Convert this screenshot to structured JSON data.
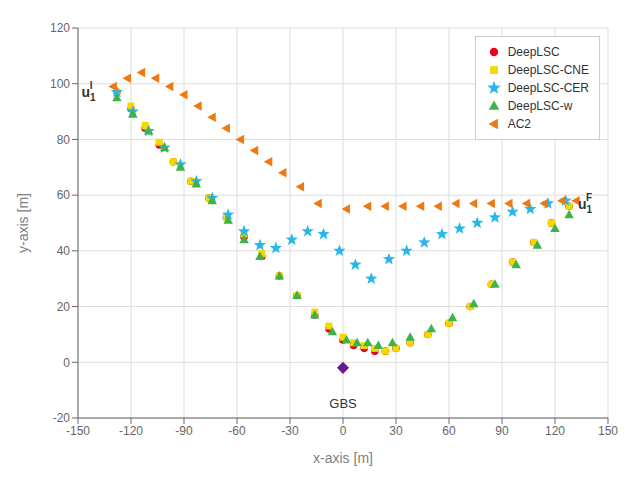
{
  "chart_data": {
    "type": "scatter",
    "x_label": "x-axis [m]",
    "y_label": "y-axis [m]",
    "xlim": [
      -150,
      150
    ],
    "ylim": [
      -20,
      120
    ],
    "xticks": [
      -150,
      -120,
      -90,
      -60,
      -30,
      0,
      30,
      60,
      90,
      120,
      150
    ],
    "yticks": [
      -20,
      0,
      20,
      40,
      60,
      80,
      100,
      120
    ],
    "grid": true,
    "legend": "upper right",
    "series": [
      {
        "name": "DeepLSC",
        "color": "#e8001c",
        "marker": "circle",
        "x": [
          -128,
          -120,
          -112,
          -104,
          -96,
          -86,
          -76,
          -66,
          -56,
          -46,
          -36,
          -26,
          -16,
          -8,
          0,
          6,
          12,
          18,
          24,
          30,
          38,
          48,
          60,
          72,
          84,
          96,
          108,
          118,
          128
        ],
        "values": [
          97,
          91,
          84,
          78,
          72,
          65,
          59,
          52,
          45,
          38,
          31,
          24,
          17,
          12,
          8,
          6,
          5,
          4,
          4,
          5,
          7,
          10,
          14,
          20,
          28,
          36,
          43,
          50,
          56
        ]
      },
      {
        "name": "DeepLSC-CNE",
        "color": "#f5d800",
        "marker": "square",
        "x": [
          -128,
          -120,
          -112,
          -104,
          -96,
          -86,
          -76,
          -66,
          -56,
          -46,
          -36,
          -26,
          -16,
          -8,
          0,
          6,
          12,
          18,
          24,
          30,
          38,
          48,
          60,
          72,
          84,
          96,
          108,
          118,
          128
        ],
        "values": [
          97,
          92,
          85,
          79,
          72,
          65,
          59,
          52,
          46,
          39,
          31,
          24,
          18,
          13,
          9,
          7,
          6,
          5,
          4,
          5,
          7,
          10,
          14,
          20,
          28,
          36,
          43,
          50,
          56
        ]
      },
      {
        "name": "DeepLSC-CER",
        "color": "#29b6e8",
        "marker": "star",
        "x": [
          -128,
          -119,
          -110,
          -101,
          -92,
          -83,
          -74,
          -65,
          -56,
          -47,
          -38,
          -29,
          -20,
          -11,
          -2,
          7,
          16,
          26,
          36,
          46,
          56,
          66,
          76,
          86,
          96,
          106,
          116,
          126
        ],
        "values": [
          97,
          90,
          83,
          77,
          71,
          65,
          59,
          53,
          47,
          42,
          41,
          44,
          47,
          46,
          40,
          35,
          30,
          37,
          40,
          43,
          46,
          48,
          50,
          52,
          54,
          55,
          57,
          58
        ]
      },
      {
        "name": "DeepLSC-w",
        "color": "#3db34a",
        "marker": "triangle",
        "x": [
          -128,
          -119,
          -110,
          -101,
          -92,
          -83,
          -74,
          -65,
          -56,
          -47,
          -36,
          -26,
          -16,
          -6,
          2,
          8,
          14,
          20,
          28,
          38,
          50,
          62,
          74,
          86,
          98,
          110,
          120,
          128
        ],
        "values": [
          95,
          89,
          83,
          77,
          70,
          64,
          58,
          51,
          44,
          38,
          31,
          24,
          17,
          11,
          8,
          7,
          7,
          6,
          7,
          9,
          12,
          16,
          21,
          28,
          35,
          42,
          48,
          53
        ]
      },
      {
        "name": "AC2",
        "color": "#f07810",
        "marker": "triangle-left",
        "x": [
          -130,
          -122,
          -114,
          -106,
          -98,
          -90,
          -82,
          -74,
          -66,
          -58,
          -50,
          -42,
          -34,
          -24,
          -14,
          2,
          14,
          24,
          34,
          44,
          54,
          64,
          74,
          84,
          94,
          104,
          114,
          124,
          132
        ],
        "values": [
          99,
          102,
          104,
          102,
          99,
          96,
          92,
          88,
          84,
          80,
          76,
          72,
          68,
          63,
          57,
          55,
          56,
          56,
          56,
          56,
          56,
          57,
          57,
          57,
          57,
          57,
          57,
          58,
          58
        ]
      }
    ],
    "points": [
      {
        "x": 0,
        "y": -2,
        "color": "#6a1a8a",
        "marker": "diamond"
      }
    ],
    "annotations": [
      {
        "text": "GBS",
        "x": 0,
        "y": -13
      },
      {
        "text": "u",
        "sub": "1",
        "sup": "I",
        "x": -148,
        "y": 97
      },
      {
        "text": "u",
        "sub": "1",
        "sup": "F",
        "x": 133,
        "y": 57
      }
    ]
  }
}
